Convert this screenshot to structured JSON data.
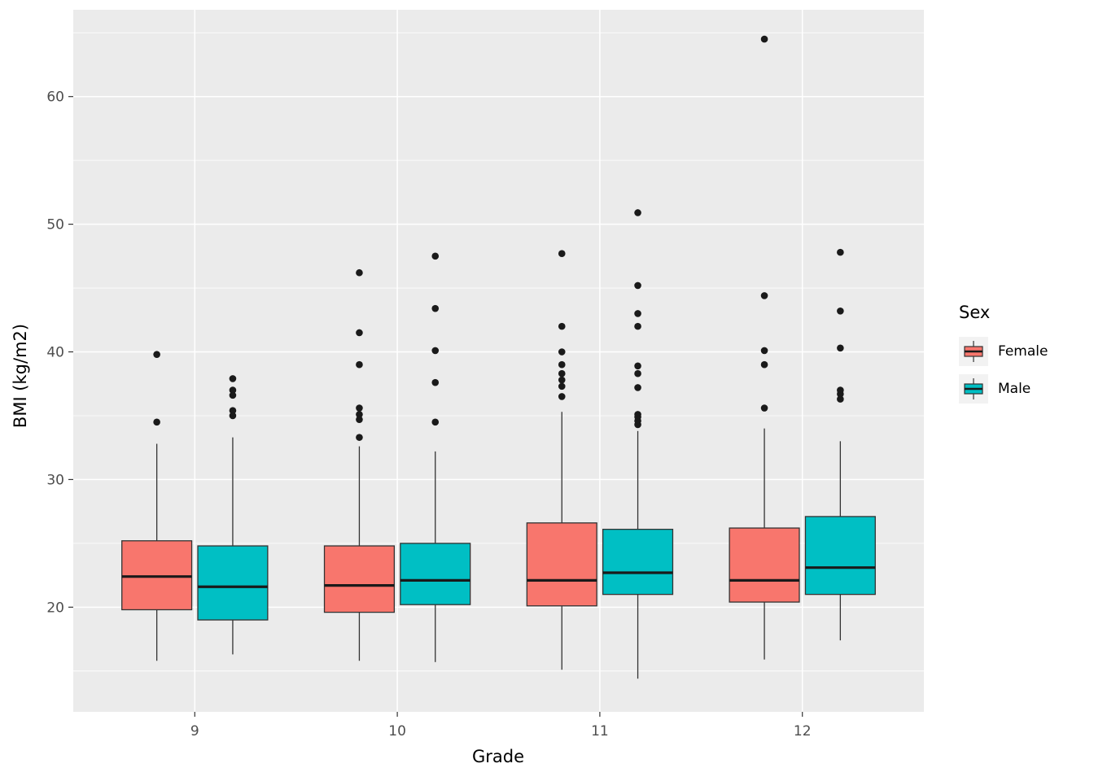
{
  "chart_data": {
    "type": "boxplot",
    "title": "",
    "xlabel": "Grade",
    "ylabel": "BMI (kg/m2)",
    "categories": [
      "9",
      "10",
      "11",
      "12"
    ],
    "y_ticks": [
      20,
      30,
      40,
      50,
      60
    ],
    "y_minor_ticks": [
      15,
      25,
      35,
      45,
      55,
      65
    ],
    "ylim": [
      11.8,
      66.8
    ],
    "grid": true,
    "legend_position": "right",
    "colors": {
      "panel_bg": "#EBEBEB",
      "gridline": "#FFFFFF",
      "box_outline": "#333333",
      "median": "#1A1A1A",
      "point": "#1A1A1A",
      "tick_label": "#4D4D4D",
      "legend_key_bg": "#F2F2F2",
      "female": "#F8766D",
      "male": "#00BFC4"
    },
    "legend": {
      "title": "Sex",
      "entries": [
        {
          "label": "Female",
          "color": "#F8766D"
        },
        {
          "label": "Male",
          "color": "#00BFC4"
        }
      ]
    },
    "series": [
      {
        "name": "Female",
        "color": "#F8766D",
        "boxes": [
          {
            "category": "9",
            "whisker_low": 15.8,
            "q1": 19.8,
            "median": 22.4,
            "q3": 25.2,
            "whisker_high": 32.8,
            "outliers": [
              34.5,
              39.8
            ]
          },
          {
            "category": "10",
            "whisker_low": 15.8,
            "q1": 19.6,
            "median": 21.7,
            "q3": 24.8,
            "whisker_high": 32.6,
            "outliers": [
              33.3,
              34.7,
              35.1,
              35.6,
              39.0,
              41.5,
              46.2
            ]
          },
          {
            "category": "11",
            "whisker_low": 15.1,
            "q1": 20.1,
            "median": 22.1,
            "q3": 26.6,
            "whisker_high": 35.3,
            "outliers": [
              36.5,
              37.3,
              37.8,
              38.3,
              39.0,
              40.0,
              42.0,
              47.7
            ]
          },
          {
            "category": "12",
            "whisker_low": 15.9,
            "q1": 20.4,
            "median": 22.1,
            "q3": 26.2,
            "whisker_high": 34.0,
            "outliers": [
              35.6,
              39.0,
              40.1,
              44.4,
              64.5
            ]
          }
        ]
      },
      {
        "name": "Male",
        "color": "#00BFC4",
        "boxes": [
          {
            "category": "9",
            "whisker_low": 16.3,
            "q1": 19.0,
            "median": 21.6,
            "q3": 24.8,
            "whisker_high": 33.3,
            "outliers": [
              35.0,
              35.4,
              36.6,
              37.0,
              37.9
            ]
          },
          {
            "category": "10",
            "whisker_low": 15.7,
            "q1": 20.2,
            "median": 22.1,
            "q3": 25.0,
            "whisker_high": 32.2,
            "outliers": [
              34.5,
              37.6,
              40.1,
              43.4,
              47.5
            ]
          },
          {
            "category": "11",
            "whisker_low": 14.4,
            "q1": 21.0,
            "median": 22.7,
            "q3": 26.1,
            "whisker_high": 33.8,
            "outliers": [
              34.3,
              34.6,
              34.9,
              35.1,
              37.2,
              38.3,
              38.9,
              42.0,
              43.0,
              45.2,
              50.9
            ]
          },
          {
            "category": "12",
            "whisker_low": 17.4,
            "q1": 21.0,
            "median": 23.1,
            "q3": 27.1,
            "whisker_high": 33.0,
            "outliers": [
              36.3,
              36.7,
              37.0,
              40.3,
              43.2,
              47.8
            ]
          }
        ]
      }
    ]
  }
}
